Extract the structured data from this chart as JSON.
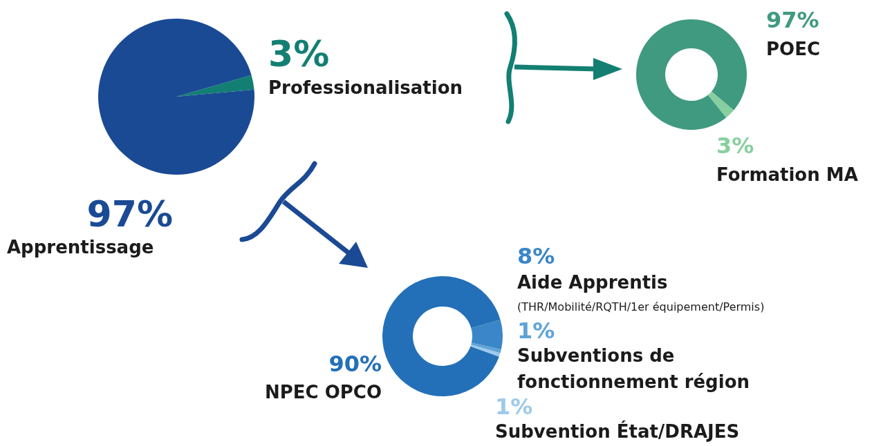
{
  "chart_data": [
    {
      "type": "pie",
      "categories": [
        "Professionalisation",
        "Apprentissage"
      ],
      "values": [
        3,
        97
      ],
      "value_labels": [
        "3%",
        "97%"
      ],
      "colors": [
        "#127f72",
        "#1a4a94"
      ]
    },
    {
      "type": "donut",
      "categories": [
        "POEC",
        "Formation MA"
      ],
      "values": [
        97,
        3
      ],
      "value_labels": [
        "97%",
        "3%"
      ],
      "colors": [
        "#3f9a80",
        "#88cfa0"
      ]
    },
    {
      "type": "donut",
      "categories": [
        "Aide Apprentis",
        "Subventions de fonctionnement région",
        "Subvention État/DRAJES",
        "NPEC OPCO"
      ],
      "values": [
        8,
        1,
        1,
        90
      ],
      "value_labels": [
        "8%",
        "1%",
        "1%",
        "90%"
      ],
      "colors": [
        "#3a86c8",
        "#5ea3d8",
        "#9dcaeb",
        "#2370b8"
      ],
      "annotations": [
        "(THR/Mobilité/RQTH/1er équipement/Permis)"
      ]
    }
  ]
}
